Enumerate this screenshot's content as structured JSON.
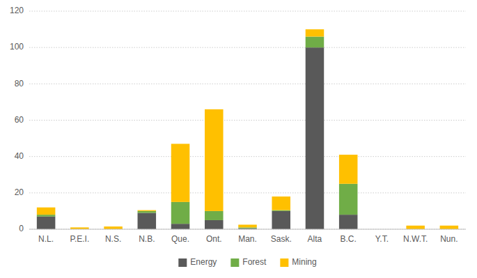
{
  "chart_data": {
    "type": "bar",
    "stacked": true,
    "categories": [
      "N.L.",
      "P.E.I.",
      "N.S.",
      "N.B.",
      "Que.",
      "Ont.",
      "Man.",
      "Sask.",
      "Alta",
      "B.C.",
      "Y.T.",
      "N.W.T.",
      "Nun."
    ],
    "series": [
      {
        "name": "Energy",
        "color": "#595959",
        "values": [
          7.0,
          0.0,
          0.0,
          9.0,
          3.0,
          5.0,
          0.5,
          10.0,
          100.0,
          8.0,
          0.0,
          0.0,
          0.0
        ]
      },
      {
        "name": "Forest",
        "color": "#70ad47",
        "values": [
          1.0,
          0.0,
          0.0,
          1.0,
          12.0,
          5.0,
          0.5,
          0.5,
          6.0,
          17.0,
          0.0,
          0.0,
          0.0
        ]
      },
      {
        "name": "Mining",
        "color": "#ffc000",
        "values": [
          4.0,
          1.0,
          1.5,
          0.5,
          32.0,
          56.0,
          1.5,
          7.5,
          4.0,
          16.0,
          0.0,
          2.0,
          2.0
        ]
      }
    ],
    "ylim": [
      0,
      120
    ],
    "yticks": [
      0,
      20,
      40,
      60,
      80,
      100,
      120
    ],
    "grid": true,
    "legend": "bottom"
  }
}
